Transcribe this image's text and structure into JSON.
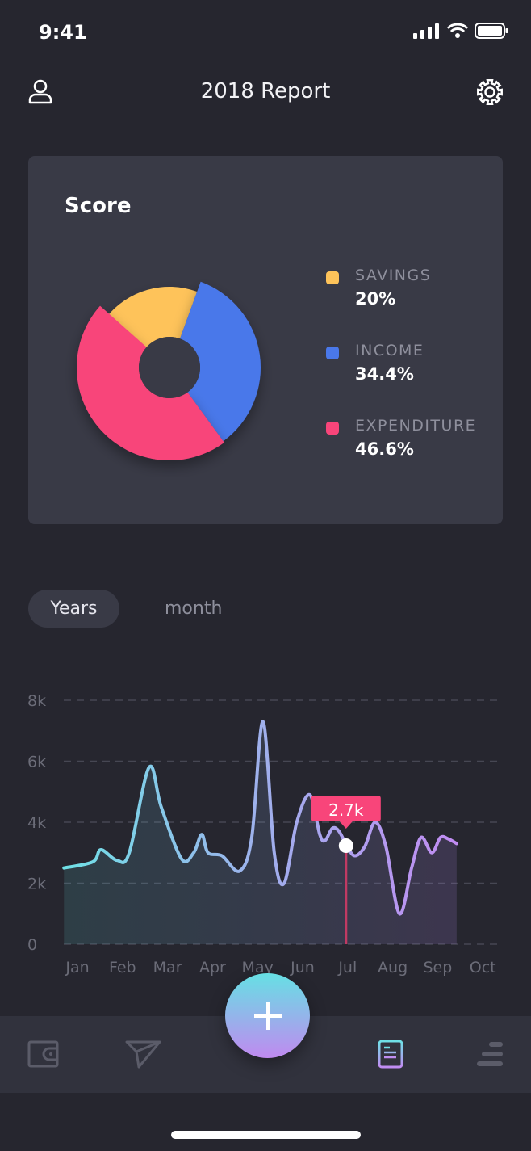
{
  "status": {
    "time": "9:41"
  },
  "header": {
    "title": "2018 Report",
    "left_icon": "user-icon",
    "right_icon": "gear-icon"
  },
  "score_card": {
    "title": "Score",
    "legend": [
      {
        "label": "SAVINGS",
        "value": "20%",
        "color": "#fec35a"
      },
      {
        "label": "INCOME",
        "value": "34.4%",
        "color": "#4a78ea"
      },
      {
        "label": "EXPENDITURE",
        "value": "46.6%",
        "color": "#f8457a"
      }
    ]
  },
  "tabs": [
    {
      "label": "Years",
      "active": true
    },
    {
      "label": "month",
      "active": false
    }
  ],
  "chart_data": {
    "type": "area",
    "y_ticks": [
      "0",
      "2k",
      "4k",
      "6k",
      "8k"
    ],
    "ylim": [
      0,
      8000
    ],
    "categories": [
      "Jan",
      "Feb",
      "Mar",
      "Apr",
      "May",
      "Jun",
      "Jul",
      "Aug",
      "Sep",
      "Oct"
    ],
    "grid": true,
    "series": [
      {
        "x": [
          -0.3,
          0.34,
          0.52,
          0.88,
          1.15,
          1.59,
          1.86,
          2.31,
          2.58,
          2.76,
          2.9,
          3.21,
          3.6,
          3.87,
          4.12,
          4.37,
          4.59,
          4.87,
          5.16,
          5.38,
          5.5,
          5.66,
          5.81,
          5.99,
          6.16,
          6.38,
          6.61,
          6.85,
          7.15,
          7.42,
          7.63,
          7.87,
          8.06,
          8.24,
          8.42
        ],
        "y": [
          2500,
          2700,
          3100,
          2750,
          3000,
          5800,
          4500,
          2800,
          3000,
          3600,
          3000,
          2900,
          2400,
          3500,
          7300,
          3000,
          2000,
          4000,
          4900,
          3600,
          3400,
          3800,
          3700,
          3200,
          2900,
          3200,
          4000,
          3200,
          1000,
          2500,
          3500,
          3000,
          3500,
          3450,
          3300
        ]
      }
    ],
    "gradient": [
      "#6fe0e6",
      "#9fb0ec",
      "#c18cf2"
    ],
    "tooltip": {
      "category": "Jul",
      "label": "2.7k",
      "color": "#f8457a"
    }
  },
  "nav": {
    "items": [
      {
        "icon": "wallet-icon"
      },
      {
        "icon": "send-icon"
      },
      {
        "icon": "add-icon"
      },
      {
        "icon": "report-icon",
        "active": true
      },
      {
        "icon": "menu-icon"
      }
    ]
  }
}
